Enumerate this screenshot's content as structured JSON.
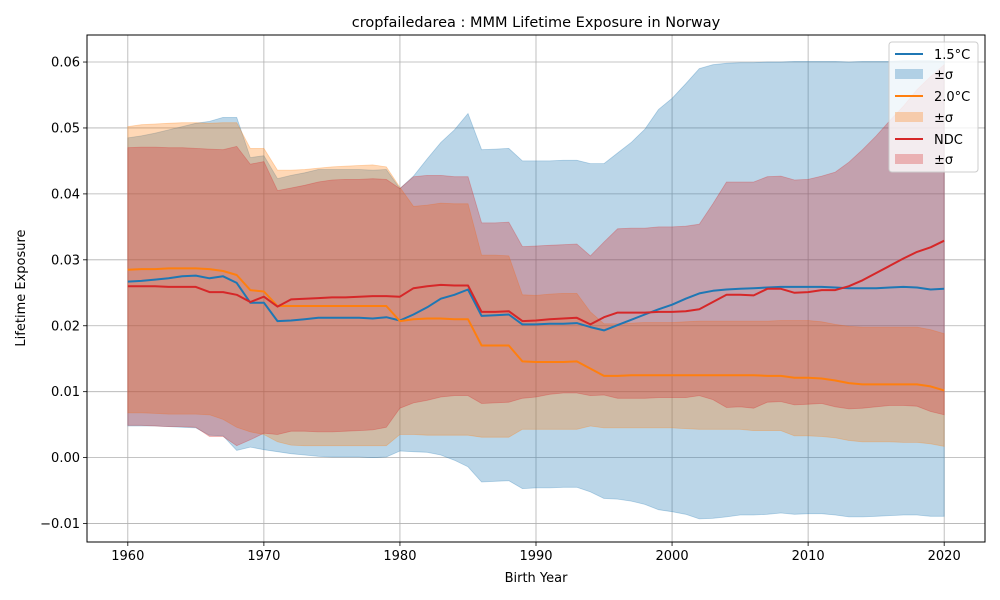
{
  "chart_data": {
    "type": "line",
    "title": "cropfailedarea : MMM Lifetime Exposure in Norway",
    "xlabel": "Birth Year",
    "ylabel": "Lifetime Exposure",
    "xlim": [
      1957,
      2023
    ],
    "ylim": [
      -0.0128,
      0.0641
    ],
    "x_ticks": [
      1960,
      1970,
      1980,
      1990,
      2000,
      2010,
      2020
    ],
    "x_tick_labels": [
      "1960",
      "1970",
      "1980",
      "1990",
      "2000",
      "2010",
      "2020"
    ],
    "y_ticks": [
      -0.01,
      0.0,
      0.01,
      0.02,
      0.03,
      0.04,
      0.05,
      0.06
    ],
    "y_tick_labels": [
      "−0.01",
      "0.00",
      "0.01",
      "0.02",
      "0.03",
      "0.04",
      "0.05",
      "0.06"
    ],
    "grid": true,
    "legend_position": "top-right",
    "legend_labels": {
      "s15_line": "1.5°C",
      "s15_band": "±σ",
      "s20_line": "2.0°C",
      "s20_band": "±σ",
      "ndc_line": "NDC",
      "ndc_band": "±σ"
    },
    "colors": {
      "s15": "#1f77b4",
      "s20": "#ff7f0e",
      "ndc": "#d62728"
    },
    "band_opacity": 0.3,
    "x": [
      1960,
      1961,
      1962,
      1963,
      1964,
      1965,
      1966,
      1967,
      1968,
      1969,
      1970,
      1971,
      1972,
      1973,
      1974,
      1975,
      1976,
      1977,
      1978,
      1979,
      1980,
      1981,
      1982,
      1983,
      1984,
      1985,
      1986,
      1987,
      1988,
      1989,
      1990,
      1991,
      1992,
      1993,
      1994,
      1995,
      1996,
      1997,
      1998,
      1999,
      2000,
      2001,
      2002,
      2003,
      2004,
      2005,
      2006,
      2007,
      2008,
      2009,
      2010,
      2011,
      2012,
      2013,
      2014,
      2015,
      2016,
      2017,
      2018,
      2019,
      2020
    ],
    "series": [
      {
        "key": "s15",
        "values": [
          0.0267,
          0.0268,
          0.027,
          0.0272,
          0.0275,
          0.0276,
          0.0272,
          0.0275,
          0.0265,
          0.0235,
          0.0235,
          0.0207,
          0.0208,
          0.021,
          0.0212,
          0.0212,
          0.0212,
          0.0212,
          0.0211,
          0.0213,
          0.0208,
          0.0217,
          0.0228,
          0.0241,
          0.0247,
          0.0255,
          0.0215,
          0.0216,
          0.0217,
          0.0202,
          0.0202,
          0.0203,
          0.0203,
          0.0204,
          0.0198,
          0.0193,
          0.0201,
          0.0209,
          0.0217,
          0.0225,
          0.0232,
          0.0241,
          0.0249,
          0.0253,
          0.0255,
          0.0256,
          0.0257,
          0.0258,
          0.0259,
          0.0259,
          0.0259,
          0.0259,
          0.0258,
          0.0257,
          0.0257,
          0.0257,
          0.0258,
          0.0259,
          0.0258,
          0.0255,
          0.0256
        ],
        "upper": [
          0.0485,
          0.0488,
          0.0492,
          0.0497,
          0.0502,
          0.0507,
          0.051,
          0.0516,
          0.0516,
          0.0455,
          0.0458,
          0.0423,
          0.0428,
          0.0432,
          0.0437,
          0.0437,
          0.0437,
          0.0437,
          0.0436,
          0.0437,
          0.0408,
          0.0427,
          0.0453,
          0.0478,
          0.0497,
          0.0522,
          0.0467,
          0.0468,
          0.0469,
          0.045,
          0.045,
          0.045,
          0.0451,
          0.0451,
          0.0446,
          0.0446,
          0.0462,
          0.0478,
          0.0498,
          0.0528,
          0.0545,
          0.0567,
          0.059,
          0.0596,
          0.0598,
          0.0599,
          0.0599,
          0.06,
          0.06,
          0.0601,
          0.0601,
          0.0601,
          0.0601,
          0.06,
          0.0601,
          0.0601,
          0.0601,
          0.0602,
          0.0602,
          0.0602,
          0.0601
        ],
        "lower": [
          0.0048,
          0.0048,
          0.0048,
          0.0047,
          0.0046,
          0.0045,
          0.0034,
          0.0033,
          0.0011,
          0.0016,
          0.0012,
          0.0009,
          0.0006,
          0.0004,
          0.0002,
          0.0001,
          0.0001,
          0.0001,
          0.0,
          0.0001,
          0.001,
          0.0009,
          0.0008,
          0.0004,
          -0.0004,
          -0.0014,
          -0.0037,
          -0.0036,
          -0.0035,
          -0.0047,
          -0.0046,
          -0.0046,
          -0.0045,
          -0.0045,
          -0.0052,
          -0.0062,
          -0.0063,
          -0.0066,
          -0.0071,
          -0.0079,
          -0.0082,
          -0.0086,
          -0.0093,
          -0.0092,
          -0.009,
          -0.0087,
          -0.0087,
          -0.0086,
          -0.0084,
          -0.0086,
          -0.0085,
          -0.0085,
          -0.0087,
          -0.009,
          -0.009,
          -0.0089,
          -0.0088,
          -0.0087,
          -0.0087,
          -0.0089,
          -0.0089
        ]
      },
      {
        "key": "s20",
        "values": [
          0.0285,
          0.0286,
          0.0286,
          0.0287,
          0.0287,
          0.0287,
          0.0286,
          0.0283,
          0.0277,
          0.0254,
          0.0252,
          0.023,
          0.023,
          0.023,
          0.023,
          0.023,
          0.023,
          0.023,
          0.023,
          0.023,
          0.0207,
          0.021,
          0.0211,
          0.0211,
          0.021,
          0.021,
          0.017,
          0.017,
          0.017,
          0.0146,
          0.0145,
          0.0145,
          0.0145,
          0.0146,
          0.0135,
          0.0124,
          0.0124,
          0.0125,
          0.0125,
          0.0125,
          0.0125,
          0.0125,
          0.0125,
          0.0125,
          0.0125,
          0.0125,
          0.0125,
          0.0124,
          0.0124,
          0.0121,
          0.0121,
          0.012,
          0.0117,
          0.0113,
          0.0111,
          0.0111,
          0.0111,
          0.0111,
          0.0111,
          0.0108,
          0.0102
        ],
        "upper": [
          0.0502,
          0.0505,
          0.0506,
          0.0507,
          0.0508,
          0.0508,
          0.0507,
          0.0508,
          0.0508,
          0.0469,
          0.0469,
          0.0436,
          0.0436,
          0.0437,
          0.0439,
          0.0441,
          0.0442,
          0.0443,
          0.0444,
          0.0441,
          0.041,
          0.0381,
          0.0383,
          0.0386,
          0.0385,
          0.0385,
          0.0307,
          0.0307,
          0.0306,
          0.0247,
          0.0246,
          0.0248,
          0.0249,
          0.0249,
          0.0221,
          0.0203,
          0.0203,
          0.0204,
          0.0205,
          0.0205,
          0.0205,
          0.0206,
          0.0207,
          0.0207,
          0.0207,
          0.0207,
          0.0207,
          0.0207,
          0.0208,
          0.0208,
          0.0208,
          0.0206,
          0.0202,
          0.0199,
          0.0198,
          0.0198,
          0.0198,
          0.0198,
          0.0198,
          0.0194,
          0.0188
        ],
        "lower": [
          0.0068,
          0.0068,
          0.0067,
          0.0066,
          0.0066,
          0.0066,
          0.0065,
          0.0058,
          0.0046,
          0.0039,
          0.0035,
          0.0024,
          0.0019,
          0.0018,
          0.0018,
          0.0018,
          0.0018,
          0.0018,
          0.0018,
          0.0018,
          0.0035,
          0.0035,
          0.0034,
          0.0034,
          0.0034,
          0.0034,
          0.0031,
          0.0031,
          0.0031,
          0.0043,
          0.0043,
          0.0043,
          0.0043,
          0.0043,
          0.0048,
          0.0045,
          0.0045,
          0.0045,
          0.0045,
          0.0045,
          0.0045,
          0.0044,
          0.0043,
          0.0043,
          0.0043,
          0.0043,
          0.0041,
          0.0041,
          0.0041,
          0.0033,
          0.0033,
          0.0032,
          0.003,
          0.0026,
          0.0024,
          0.0024,
          0.0024,
          0.0023,
          0.0023,
          0.0021,
          0.0017
        ]
      },
      {
        "key": "ndc",
        "values": [
          0.026,
          0.026,
          0.026,
          0.0259,
          0.0259,
          0.0259,
          0.0251,
          0.0251,
          0.0247,
          0.0236,
          0.0244,
          0.0229,
          0.024,
          0.0241,
          0.0242,
          0.0243,
          0.0243,
          0.0244,
          0.0245,
          0.0245,
          0.0244,
          0.0257,
          0.026,
          0.0262,
          0.0261,
          0.0261,
          0.0221,
          0.0221,
          0.0222,
          0.0207,
          0.0208,
          0.021,
          0.0211,
          0.0212,
          0.0202,
          0.0213,
          0.022,
          0.022,
          0.022,
          0.0221,
          0.0221,
          0.0222,
          0.0225,
          0.0236,
          0.0247,
          0.0247,
          0.0246,
          0.0256,
          0.0256,
          0.025,
          0.0251,
          0.0254,
          0.0254,
          0.026,
          0.0269,
          0.028,
          0.0291,
          0.0302,
          0.0312,
          0.0319,
          0.0329
        ],
        "upper": [
          0.047,
          0.0471,
          0.0471,
          0.047,
          0.047,
          0.0469,
          0.0468,
          0.0467,
          0.0472,
          0.0445,
          0.0449,
          0.0405,
          0.0409,
          0.0413,
          0.0418,
          0.0421,
          0.0422,
          0.0422,
          0.0423,
          0.0422,
          0.0408,
          0.0426,
          0.0428,
          0.0428,
          0.0426,
          0.0426,
          0.0356,
          0.0356,
          0.0357,
          0.032,
          0.0321,
          0.0322,
          0.0323,
          0.0324,
          0.0306,
          0.0327,
          0.0347,
          0.0348,
          0.0348,
          0.035,
          0.035,
          0.0351,
          0.0354,
          0.0385,
          0.0418,
          0.0418,
          0.0418,
          0.0426,
          0.0427,
          0.0421,
          0.0422,
          0.0427,
          0.0433,
          0.0448,
          0.0467,
          0.0488,
          0.0511,
          0.0533,
          0.0558,
          0.0578,
          0.0596
        ],
        "lower": [
          0.0049,
          0.0049,
          0.0048,
          0.0047,
          0.0047,
          0.0046,
          0.0032,
          0.0032,
          0.0018,
          0.0027,
          0.0037,
          0.0035,
          0.004,
          0.004,
          0.0039,
          0.0039,
          0.004,
          0.0041,
          0.0042,
          0.0046,
          0.0075,
          0.0083,
          0.0087,
          0.0092,
          0.0094,
          0.0094,
          0.0082,
          0.0083,
          0.0084,
          0.009,
          0.0092,
          0.0096,
          0.0098,
          0.0098,
          0.0094,
          0.0095,
          0.009,
          0.009,
          0.009,
          0.0091,
          0.0091,
          0.0091,
          0.0094,
          0.0088,
          0.0076,
          0.0077,
          0.0075,
          0.0084,
          0.0085,
          0.008,
          0.0081,
          0.0082,
          0.0077,
          0.0074,
          0.0075,
          0.0077,
          0.0079,
          0.0079,
          0.0078,
          0.007,
          0.0065
        ]
      }
    ]
  }
}
